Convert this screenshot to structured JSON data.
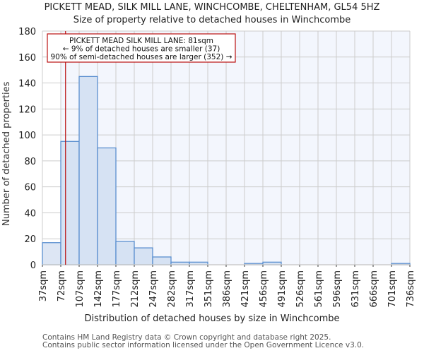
{
  "header": {
    "title": "PICKETT MEAD, SILK MILL LANE, WINCHCOMBE, CHELTENHAM, GL54 5HZ",
    "subtitle": "Size of property relative to detached houses in Winchcombe"
  },
  "axes": {
    "xlabel": "Distribution of detached houses by size in Winchcombe",
    "ylabel": "Number of detached properties"
  },
  "annotation": {
    "line1": "PICKETT MEAD SILK MILL LANE: 81sqm",
    "line2": "← 9% of detached houses are smaller (37)",
    "line3": "90% of semi-detached houses are larger (352) →"
  },
  "footer": {
    "line1": "Contains HM Land Registry data © Crown copyright and database right 2025.",
    "line2": "Contains public sector information licensed under the Open Government Licence v3.0."
  },
  "colors": {
    "bar_fill": "#d6e2f3",
    "bar_fill_left": "#dde6f4",
    "bar_edge": "#5b8fcf",
    "plot_bg": "#f3f6fd",
    "grid": "#cccccc",
    "marker": "#bb1111"
  },
  "chart_data": {
    "type": "bar",
    "title": "PICKETT MEAD, SILK MILL LANE, WINCHCOMBE, CHELTENHAM, GL54 5HZ",
    "subtitle": "Size of property relative to detached houses in Winchcombe",
    "xlabel": "Distribution of detached houses by size in Winchcombe",
    "ylabel": "Number of detached properties",
    "categories": [
      "37sqm",
      "72sqm",
      "107sqm",
      "142sqm",
      "177sqm",
      "212sqm",
      "247sqm",
      "282sqm",
      "317sqm",
      "351sqm",
      "386sqm",
      "421sqm",
      "456sqm",
      "491sqm",
      "526sqm",
      "561sqm",
      "596sqm",
      "631sqm",
      "666sqm",
      "701sqm",
      "736sqm"
    ],
    "bin_edges": [
      37,
      72,
      107,
      142,
      177,
      212,
      247,
      282,
      317,
      351,
      386,
      421,
      456,
      491,
      526,
      561,
      596,
      631,
      666,
      701,
      736
    ],
    "values": [
      17,
      95,
      145,
      90,
      18,
      13,
      6,
      2,
      2,
      0,
      0,
      1,
      2,
      0,
      0,
      0,
      0,
      0,
      0,
      1
    ],
    "ylim": [
      0,
      180
    ],
    "yticks": [
      0,
      20,
      40,
      60,
      80,
      100,
      120,
      140,
      160,
      180
    ],
    "grid": true,
    "marker": {
      "value": 81,
      "label": "PICKETT MEAD SILK MILL LANE: 81sqm"
    },
    "annotations": [
      "PICKETT MEAD SILK MILL LANE: 81sqm",
      "← 9% of detached houses are smaller (37)",
      "90% of semi-detached houses are larger (352) →"
    ]
  }
}
